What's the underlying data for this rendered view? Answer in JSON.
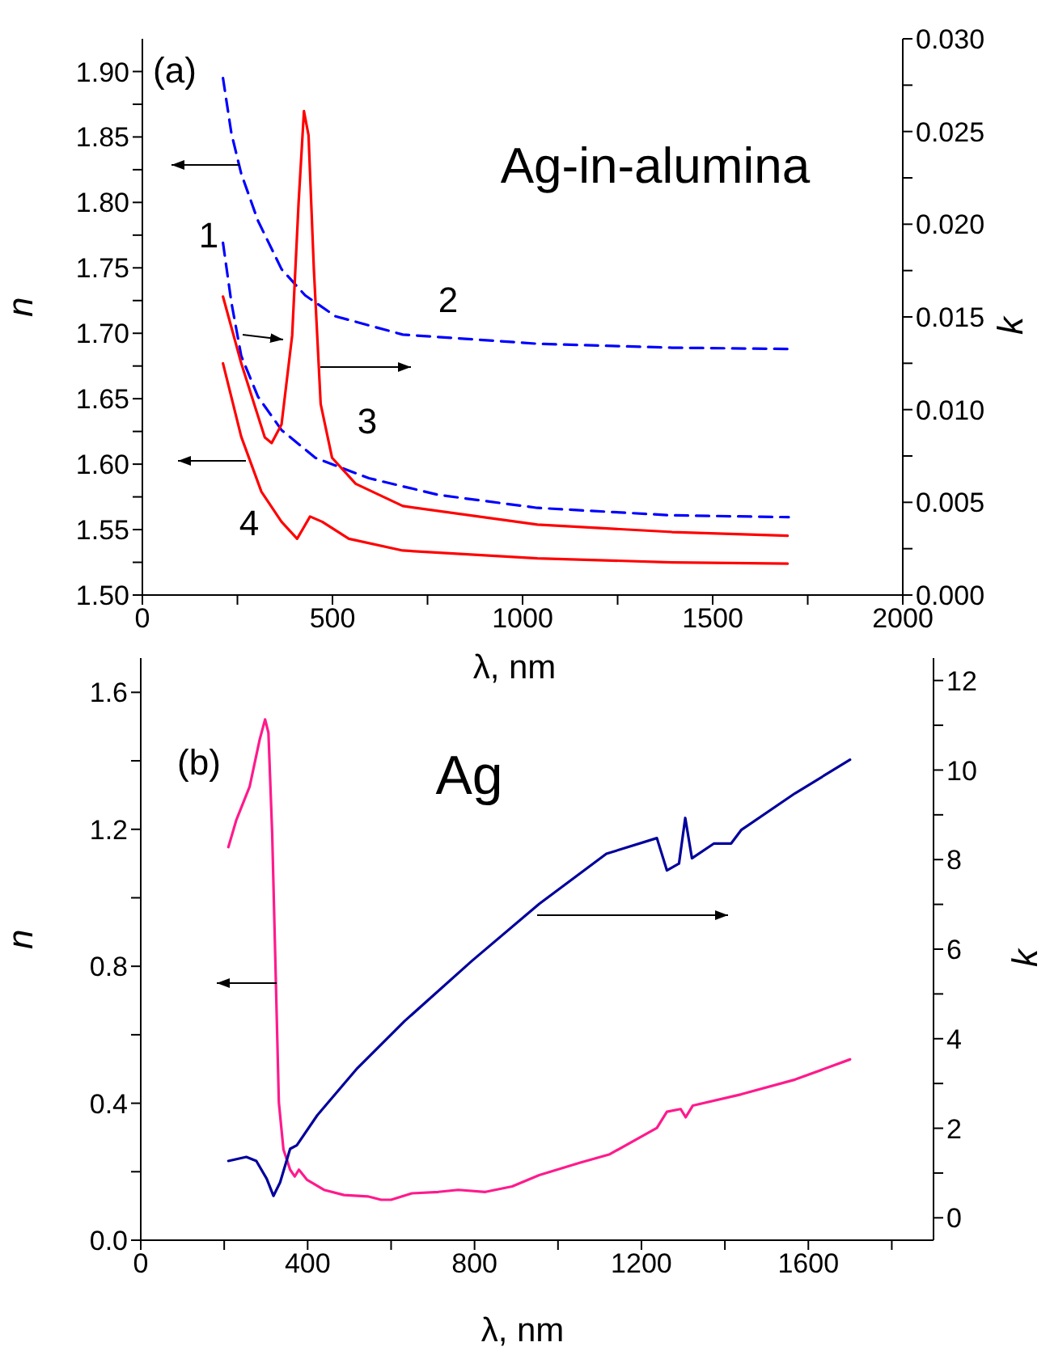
{
  "chart_data": [
    {
      "type": "line",
      "xlabel": "λ, nm",
      "ylabel": "n",
      "y2label": "k",
      "annotations": [
        "(a)",
        "Ag-in-alumina",
        "1",
        "2",
        "3",
        "4"
      ],
      "xlim": [
        0,
        2000
      ],
      "xticks": [
        0,
        {
          "value": 250,
          "label": null
        },
        500,
        {
          "value": 750,
          "label": null
        },
        1000,
        {
          "value": 1250,
          "label": null
        },
        1500,
        {
          "value": 1750,
          "label": null
        },
        2000
      ],
      "ylim": [
        1.5,
        1.925
      ],
      "yticks": [
        {
          "value": 1.5,
          "label": "1.50"
        },
        {
          "value": 1.525,
          "label": null
        },
        {
          "value": 1.55,
          "label": "1.55"
        },
        {
          "value": 1.575,
          "label": null
        },
        {
          "value": 1.6,
          "label": "1.60"
        },
        {
          "value": 1.625,
          "label": null
        },
        {
          "value": 1.65,
          "label": "1.65"
        },
        {
          "value": 1.675,
          "label": null
        },
        {
          "value": 1.7,
          "label": "1.70"
        },
        {
          "value": 1.725,
          "label": null
        },
        {
          "value": 1.75,
          "label": "1.75"
        },
        {
          "value": 1.775,
          "label": null
        },
        {
          "value": 1.8,
          "label": "1.80"
        },
        {
          "value": 1.825,
          "label": null
        },
        {
          "value": 1.85,
          "label": "1.85"
        },
        {
          "value": 1.875,
          "label": null
        },
        {
          "value": 1.9,
          "label": "1.90"
        }
      ],
      "y2lim": [
        0,
        0.03
      ],
      "y2ticks": [
        {
          "value": 0,
          "label": "0.000"
        },
        {
          "value": 0.0025,
          "label": null
        },
        {
          "value": 0.005,
          "label": "0.005"
        },
        {
          "value": 0.0075,
          "label": null
        },
        {
          "value": 0.01,
          "label": "0.010"
        },
        {
          "value": 0.0125,
          "label": null
        },
        {
          "value": 0.015,
          "label": "0.015"
        },
        {
          "value": 0.0175,
          "label": null
        },
        {
          "value": 0.02,
          "label": "0.020"
        },
        {
          "value": 0.0225,
          "label": null
        },
        {
          "value": 0.025,
          "label": "0.025"
        },
        {
          "value": 0.0275,
          "label": null
        },
        {
          "value": 0.03,
          "label": "0.030"
        }
      ],
      "series": [
        {
          "color": "#0000ff",
          "line_style": "dashed",
          "x": [
            212,
            234,
            260,
            304,
            366,
            428,
            508,
            685,
            1039,
            1393,
            1700
          ],
          "values": [
            1.895,
            1.853,
            1.822,
            1.786,
            1.749,
            1.729,
            1.713,
            1.699,
            1.692,
            1.689,
            1.688
          ]
        },
        {
          "color": "#0000ff",
          "line_style": "dashed",
          "axis": "y2",
          "x": [
            212,
            234,
            260,
            304,
            366,
            455,
            596,
            779,
            1039,
            1393,
            1700
          ],
          "values": [
            0.019,
            0.0158,
            0.0129,
            0.0107,
            0.0089,
            0.0074,
            0.0063,
            0.0054,
            0.0047,
            0.0043,
            0.0042
          ]
        },
        {
          "color": "#ff0000",
          "line_style": "solid",
          "axis": "y2",
          "x": [
            212,
            260,
            322,
            340,
            366,
            394,
            411,
            425,
            437,
            451,
            469,
            499,
            561,
            685,
            1039,
            1393,
            1697
          ],
          "values": [
            0.0161,
            0.0125,
            0.0085,
            0.0082,
            0.0092,
            0.014,
            0.0212,
            0.0261,
            0.0248,
            0.0176,
            0.0103,
            0.0074,
            0.006,
            0.0048,
            0.0038,
            0.0034,
            0.0032
          ]
        },
        {
          "color": "#ff0000",
          "line_style": "solid",
          "x": [
            212,
            260,
            313,
            366,
            407,
            423,
            441,
            473,
            543,
            685,
            1039,
            1393,
            1697
          ],
          "values": [
            1.677,
            1.621,
            1.579,
            1.556,
            1.543,
            1.551,
            1.56,
            1.556,
            1.543,
            1.534,
            1.528,
            1.525,
            1.524
          ]
        }
      ]
    },
    {
      "type": "line",
      "xlabel": "λ, nm",
      "ylabel": "n",
      "y2label": "k",
      "annotations": [
        "(b)",
        "Ag"
      ],
      "xlim": [
        0,
        1900
      ],
      "xticks": [
        0,
        {
          "value": 200,
          "label": null
        },
        400,
        {
          "value": 600,
          "label": null
        },
        800,
        {
          "value": 1000,
          "label": null
        },
        1200,
        {
          "value": 1400,
          "label": null
        },
        1600,
        {
          "value": 1800,
          "label": null
        }
      ],
      "ylim": [
        0,
        1.7
      ],
      "yticks": [
        {
          "value": 0,
          "label": "0.0"
        },
        {
          "value": 0.2,
          "label": null
        },
        {
          "value": 0.4,
          "label": "0.4"
        },
        {
          "value": 0.6,
          "label": null
        },
        {
          "value": 0.8,
          "label": "0.8"
        },
        {
          "value": 1.0,
          "label": null
        },
        {
          "value": 1.2,
          "label": "1.2"
        },
        {
          "value": 1.4,
          "label": null
        },
        {
          "value": 1.6,
          "label": "1.6"
        }
      ],
      "y2lim": [
        -0.5,
        12.5
      ],
      "y2ticks": [
        0,
        {
          "value": 1,
          "label": null
        },
        2,
        {
          "value": 3,
          "label": null
        },
        4,
        {
          "value": 5,
          "label": null
        },
        6,
        {
          "value": 7,
          "label": null
        },
        8,
        {
          "value": 9,
          "label": null
        },
        10,
        {
          "value": 11,
          "label": null
        },
        12
      ],
      "series": [
        {
          "color": "#ff1a8c",
          "line_style": "solid",
          "x": [
            210,
            229,
            261,
            285,
            298,
            306,
            315,
            323,
            331,
            342,
            358,
            369,
            379,
            398,
            439,
            487,
            544,
            576,
            600,
            650,
            713,
            761,
            826,
            890,
            955,
            1052,
            1124,
            1237,
            1261,
            1294,
            1306,
            1323,
            1439,
            1568,
            1700
          ],
          "values": [
            1.148,
            1.227,
            1.325,
            1.462,
            1.521,
            1.482,
            1.187,
            0.795,
            0.402,
            0.265,
            0.206,
            0.186,
            0.206,
            0.177,
            0.147,
            0.132,
            0.128,
            0.118,
            0.118,
            0.137,
            0.141,
            0.147,
            0.141,
            0.157,
            0.19,
            0.226,
            0.251,
            0.328,
            0.375,
            0.383,
            0.359,
            0.393,
            0.426,
            0.469,
            0.528
          ]
        },
        {
          "color": "#00009c",
          "line_style": "solid",
          "axis": "y2",
          "x": [
            210,
            253,
            277,
            302,
            318,
            334,
            358,
            374,
            423,
            519,
            632,
            794,
            955,
            1116,
            1237,
            1261,
            1290,
            1305,
            1321,
            1374,
            1415,
            1439,
            1568,
            1700
          ],
          "values": [
            1.27,
            1.36,
            1.27,
            0.87,
            0.49,
            0.79,
            1.54,
            1.62,
            2.29,
            3.34,
            4.39,
            5.74,
            7.01,
            8.13,
            8.48,
            7.76,
            7.91,
            8.93,
            8.03,
            8.36,
            8.36,
            8.66,
            9.48,
            10.23
          ]
        }
      ]
    }
  ]
}
